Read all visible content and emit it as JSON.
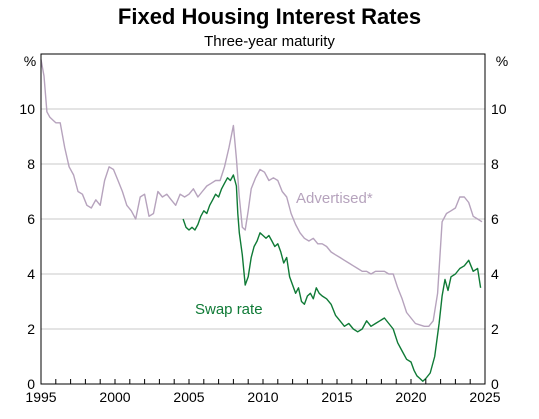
{
  "colors": {
    "advertised": "#b6a3bd",
    "swap": "#0f7a36",
    "grid": "#c9c9c9",
    "axis": "#000000"
  },
  "chart_data": {
    "type": "line",
    "title": "Fixed Housing Interest Rates",
    "subtitle": "Three-year maturity",
    "ylabel_left": "%",
    "ylabel_right": "%",
    "xlim": [
      1995,
      2025
    ],
    "ylim": [
      0,
      12
    ],
    "xticks": [
      1995,
      2000,
      2005,
      2010,
      2015,
      2020,
      2025
    ],
    "yticks": [
      0,
      2,
      4,
      6,
      8,
      10
    ],
    "grid": true,
    "series": [
      {
        "name": "Advertised*",
        "color": "#b6a3bd",
        "x": [
          1995.0,
          1995.2,
          1995.4,
          1995.6,
          1995.8,
          1996.0,
          1996.3,
          1996.6,
          1996.9,
          1997.2,
          1997.5,
          1997.8,
          1998.1,
          1998.4,
          1998.7,
          1999.0,
          1999.3,
          1999.6,
          1999.9,
          2000.2,
          2000.5,
          2000.8,
          2001.1,
          2001.4,
          2001.7,
          2002.0,
          2002.3,
          2002.6,
          2002.9,
          2003.2,
          2003.5,
          2003.8,
          2004.1,
          2004.4,
          2004.7,
          2005.0,
          2005.3,
          2005.6,
          2005.9,
          2006.2,
          2006.5,
          2006.8,
          2007.1,
          2007.4,
          2007.7,
          2008.0,
          2008.2,
          2008.4,
          2008.6,
          2008.8,
          2009.0,
          2009.2,
          2009.5,
          2009.8,
          2010.1,
          2010.4,
          2010.7,
          2011.0,
          2011.3,
          2011.6,
          2011.9,
          2012.2,
          2012.5,
          2012.8,
          2013.1,
          2013.4,
          2013.7,
          2014.0,
          2014.3,
          2014.6,
          2014.9,
          2015.2,
          2015.5,
          2015.8,
          2016.1,
          2016.4,
          2016.7,
          2017.0,
          2017.3,
          2017.6,
          2017.9,
          2018.2,
          2018.5,
          2018.8,
          2019.1,
          2019.4,
          2019.7,
          2020.0,
          2020.3,
          2020.6,
          2020.9,
          2021.2,
          2021.5,
          2021.8,
          2022.1,
          2022.4,
          2022.7,
          2023.0,
          2023.3,
          2023.6,
          2023.9,
          2024.2,
          2024.5,
          2024.8
        ],
        "y": [
          11.8,
          11.2,
          9.9,
          9.7,
          9.6,
          9.5,
          9.5,
          8.6,
          7.9,
          7.6,
          7.0,
          6.9,
          6.5,
          6.4,
          6.7,
          6.5,
          7.4,
          7.9,
          7.8,
          7.4,
          7.0,
          6.5,
          6.3,
          6.0,
          6.8,
          6.9,
          6.1,
          6.2,
          7.0,
          6.8,
          6.9,
          6.7,
          6.5,
          6.9,
          6.8,
          6.9,
          7.1,
          6.8,
          7.0,
          7.2,
          7.3,
          7.4,
          7.4,
          7.9,
          8.6,
          9.4,
          8.2,
          6.8,
          5.7,
          5.6,
          6.3,
          7.1,
          7.5,
          7.8,
          7.7,
          7.4,
          7.5,
          7.4,
          7.0,
          6.8,
          6.2,
          5.8,
          5.5,
          5.3,
          5.2,
          5.3,
          5.1,
          5.1,
          5.0,
          4.8,
          4.7,
          4.6,
          4.5,
          4.4,
          4.3,
          4.2,
          4.1,
          4.1,
          4.0,
          4.1,
          4.1,
          4.1,
          4.0,
          4.0,
          3.5,
          3.1,
          2.6,
          2.4,
          2.2,
          2.15,
          2.1,
          2.1,
          2.3,
          3.3,
          5.9,
          6.2,
          6.3,
          6.4,
          6.8,
          6.8,
          6.6,
          6.1,
          6.0,
          5.9
        ]
      },
      {
        "name": "Swap rate",
        "color": "#0f7a36",
        "x": [
          2004.6,
          2004.8,
          2005.0,
          2005.2,
          2005.4,
          2005.6,
          2005.8,
          2006.0,
          2006.2,
          2006.4,
          2006.6,
          2006.8,
          2007.0,
          2007.2,
          2007.4,
          2007.6,
          2007.8,
          2008.0,
          2008.2,
          2008.3,
          2008.4,
          2008.6,
          2008.8,
          2009.0,
          2009.2,
          2009.4,
          2009.6,
          2009.8,
          2010.0,
          2010.2,
          2010.4,
          2010.6,
          2010.8,
          2011.0,
          2011.2,
          2011.4,
          2011.6,
          2011.8,
          2012.0,
          2012.2,
          2012.4,
          2012.6,
          2012.8,
          2013.0,
          2013.2,
          2013.4,
          2013.6,
          2013.8,
          2014.0,
          2014.3,
          2014.6,
          2014.9,
          2015.2,
          2015.5,
          2015.8,
          2016.1,
          2016.4,
          2016.7,
          2017.0,
          2017.3,
          2017.6,
          2017.9,
          2018.2,
          2018.5,
          2018.8,
          2019.1,
          2019.4,
          2019.7,
          2020.0,
          2020.2,
          2020.4,
          2020.6,
          2020.8,
          2021.0,
          2021.3,
          2021.6,
          2021.9,
          2022.1,
          2022.3,
          2022.5,
          2022.7,
          2023.0,
          2023.3,
          2023.6,
          2023.9,
          2024.2,
          2024.5,
          2024.7
        ],
        "y": [
          6.0,
          5.7,
          5.6,
          5.7,
          5.6,
          5.8,
          6.1,
          6.3,
          6.2,
          6.5,
          6.7,
          6.9,
          6.8,
          7.1,
          7.3,
          7.5,
          7.4,
          7.6,
          7.2,
          6.2,
          5.5,
          4.7,
          3.6,
          3.9,
          4.6,
          5.0,
          5.2,
          5.5,
          5.4,
          5.3,
          5.4,
          5.2,
          5.0,
          5.1,
          4.8,
          4.4,
          4.6,
          3.9,
          3.6,
          3.3,
          3.5,
          3.0,
          2.9,
          3.2,
          3.3,
          3.1,
          3.5,
          3.3,
          3.2,
          3.1,
          2.9,
          2.5,
          2.3,
          2.1,
          2.2,
          2.0,
          1.9,
          2.0,
          2.3,
          2.1,
          2.2,
          2.3,
          2.4,
          2.2,
          2.0,
          1.5,
          1.2,
          0.9,
          0.8,
          0.5,
          0.3,
          0.2,
          0.1,
          0.2,
          0.4,
          1.0,
          2.2,
          3.2,
          3.8,
          3.4,
          3.9,
          4.0,
          4.2,
          4.3,
          4.5,
          4.1,
          4.2,
          3.5
        ]
      }
    ],
    "annotations": [
      {
        "text": "Advertised*",
        "series": 0
      },
      {
        "text": "Swap rate",
        "series": 1
      }
    ]
  }
}
